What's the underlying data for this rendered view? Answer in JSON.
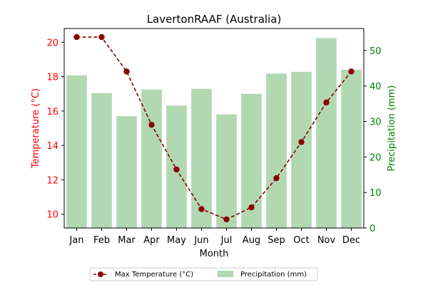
{
  "chart_data": {
    "type": "bar+line",
    "title": "LavertonRAAF (Australia)",
    "xlabel": "Month",
    "ylabel_left": "Temperature (°C)",
    "ylabel_right": "Precipitation (mm)",
    "categories": [
      "Jan",
      "Feb",
      "Mar",
      "Apr",
      "May",
      "Jun",
      "Jul",
      "Aug",
      "Sep",
      "Oct",
      "Nov",
      "Dec"
    ],
    "series": [
      {
        "name": "Max Temperature (°C)",
        "type": "line",
        "axis": "left",
        "color": "#8b0000",
        "values": [
          20.3,
          20.3,
          18.3,
          15.2,
          12.6,
          10.3,
          9.7,
          10.4,
          12.1,
          14.2,
          16.5,
          18.3
        ]
      },
      {
        "name": "Precipitation (mm)",
        "type": "bar",
        "axis": "right",
        "color": "#b2d8b2",
        "values": [
          43,
          38,
          31.5,
          39,
          34.5,
          39.2,
          32,
          37.8,
          43.5,
          44,
          53.5,
          44.6
        ]
      }
    ],
    "ylim_left": [
      9.2,
      20.8
    ],
    "yticks_left": [
      10,
      12,
      14,
      16,
      18,
      20
    ],
    "ylim_right": [
      0,
      56.2
    ],
    "yticks_right": [
      0,
      10,
      20,
      30,
      40,
      50
    ],
    "grid": false,
    "legend_position": "bottom-center",
    "colors": {
      "left_axis": "#ff0000",
      "right_axis": "#008000"
    }
  }
}
